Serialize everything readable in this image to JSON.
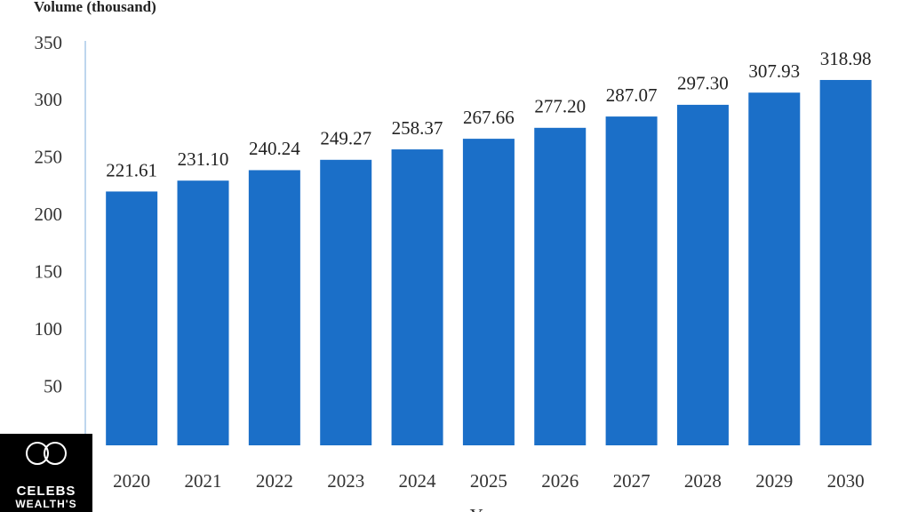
{
  "chart_data": {
    "type": "bar",
    "y_axis_label": "Volume (thousand)",
    "x_axis_label": "Years",
    "categories": [
      "2020",
      "2021",
      "2022",
      "2023",
      "2024",
      "2025",
      "2026",
      "2027",
      "2028",
      "2029",
      "2030"
    ],
    "values": [
      221.61,
      231.1,
      240.24,
      249.27,
      258.37,
      267.66,
      277.2,
      287.07,
      297.3,
      307.93,
      318.98
    ],
    "value_labels": [
      "221.61",
      "231.10",
      "240.24",
      "249.27",
      "258.37",
      "267.66",
      "277.20",
      "287.07",
      "297.30",
      "307.93",
      "318.98"
    ],
    "color": "#1b6fc8",
    "ylim": [
      0,
      350
    ],
    "yticks": [
      50,
      100,
      150,
      200,
      250,
      300,
      350
    ],
    "grid": false
  },
  "logo": {
    "line1": "CELEBS",
    "line2": "WEALTH'S"
  }
}
